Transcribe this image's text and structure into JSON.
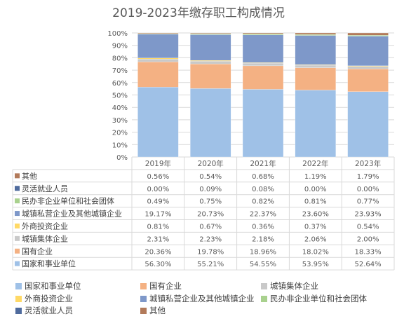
{
  "chart_data": {
    "type": "bar",
    "stacked": true,
    "percent_stacked": true,
    "title": "2019-2023年缴存职工构成情况",
    "categories": [
      "2019年",
      "2020年",
      "2021年",
      "2022年",
      "2023年"
    ],
    "y_ticks": [
      "0%",
      "10%",
      "20%",
      "30%",
      "40%",
      "50%",
      "60%",
      "70%",
      "80%",
      "90%",
      "100%"
    ],
    "ylim": [
      0,
      100
    ],
    "grid": true,
    "legend_position": "bottom",
    "series": [
      {
        "name": "国家和事业单位",
        "color": "#9fc1e7",
        "values": [
          56.3,
          55.21,
          54.55,
          53.95,
          52.64
        ],
        "labels": [
          "56.30%",
          "55.21%",
          "54.55%",
          "53.95%",
          "52.64%"
        ]
      },
      {
        "name": "国有企业",
        "color": "#f4b183",
        "values": [
          20.36,
          19.78,
          18.96,
          18.02,
          18.33
        ],
        "labels": [
          "20.36%",
          "19.78%",
          "18.96%",
          "18.02%",
          "18.33%"
        ]
      },
      {
        "name": "城镇集体企业",
        "color": "#c9c9c9",
        "values": [
          2.31,
          2.23,
          2.18,
          2.06,
          2.0
        ],
        "labels": [
          "2.31%",
          "2.23%",
          "2.18%",
          "2.06%",
          "2.00%"
        ]
      },
      {
        "name": "外商投资企业",
        "color": "#ffd966",
        "values": [
          0.81,
          0.67,
          0.36,
          0.37,
          0.54
        ],
        "labels": [
          "0.81%",
          "0.67%",
          "0.36%",
          "0.37%",
          "0.54%"
        ]
      },
      {
        "name": "城镇私营企业及其他城镇企业",
        "color": "#7e98c9",
        "values": [
          19.17,
          20.73,
          22.37,
          23.6,
          23.93
        ],
        "labels": [
          "19.17%",
          "20.73%",
          "22.37%",
          "23.60%",
          "23.93%"
        ]
      },
      {
        "name": "民办非企业单位和社会团体",
        "color": "#a9d18e",
        "values": [
          0.49,
          0.75,
          0.82,
          0.81,
          0.77
        ],
        "labels": [
          "0.49%",
          "0.75%",
          "0.82%",
          "0.81%",
          "0.77%"
        ]
      },
      {
        "name": "灵活就业人员",
        "color": "#4f6b9d",
        "values": [
          0.0,
          0.09,
          0.08,
          0.0,
          0.0
        ],
        "labels": [
          "0.00%",
          "0.09%",
          "0.08%",
          "0.00%",
          "0.00%"
        ]
      },
      {
        "name": "其他",
        "color": "#b27a5a",
        "values": [
          0.56,
          0.54,
          0.68,
          1.19,
          1.79
        ],
        "labels": [
          "0.56%",
          "0.54%",
          "0.68%",
          "1.19%",
          "1.79%"
        ]
      }
    ],
    "table_row_order": [
      "其他",
      "灵活就业人员",
      "民办非企业单位和社会团体",
      "城镇私营企业及其他城镇企业",
      "外商投资企业",
      "城镇集体企业",
      "国有企业",
      "国家和事业单位"
    ],
    "legend_order": [
      "国家和事业单位",
      "国有企业",
      "城镇集体企业",
      "外商投资企业",
      "城镇私营企业及其他城镇企业",
      "民办非企业单位和社会团体",
      "灵活就业人员",
      "其他"
    ]
  }
}
